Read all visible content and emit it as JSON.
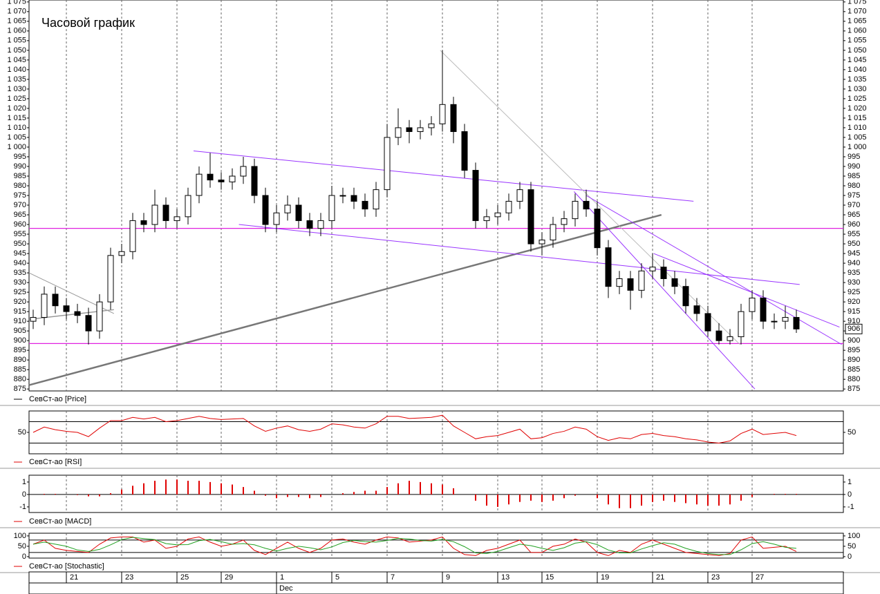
{
  "chart_data": [
    {
      "type": "candlestick",
      "title": "Часовой график",
      "categories": [
        null,
        null,
        null,
        "21",
        null,
        null,
        null,
        null,
        "23",
        null,
        null,
        null,
        null,
        "25",
        null,
        null,
        null,
        "29",
        null,
        null,
        null,
        null,
        "1",
        null,
        null,
        null,
        null,
        "5",
        null,
        null,
        null,
        null,
        "7",
        null,
        null,
        null,
        null,
        "9",
        null,
        null,
        null,
        null,
        "13",
        null,
        null,
        null,
        "15",
        null,
        null,
        null,
        null,
        "19",
        null,
        null,
        null,
        null,
        "21",
        null,
        null,
        null,
        null,
        "23",
        null,
        null,
        null,
        "27",
        null,
        null,
        null,
        null
      ],
      "months": [
        null,
        null,
        null,
        null,
        null,
        null,
        null,
        null,
        null,
        null,
        null,
        null,
        null,
        null,
        null,
        null,
        null,
        null,
        null,
        null,
        null,
        null,
        "Dec",
        null,
        null,
        null,
        null,
        null,
        null,
        null,
        null,
        null,
        null,
        null,
        null,
        null,
        null,
        null,
        null,
        null,
        null,
        null,
        null,
        null,
        null,
        null,
        null,
        null,
        null,
        null,
        null,
        null,
        null,
        null,
        null,
        null,
        null,
        null,
        null,
        null,
        null,
        null,
        null,
        null,
        null,
        null,
        null,
        null,
        null,
        null
      ],
      "series": [
        {
          "name": "СевСт-ао [Price]",
          "color": "#000000",
          "open": [
            910,
            912,
            924,
            918,
            915,
            913,
            905,
            920,
            944,
            946,
            962,
            960,
            970,
            962,
            964,
            975,
            986,
            983,
            982,
            985,
            990,
            975,
            960,
            966,
            970,
            962,
            958,
            962,
            975,
            975,
            972,
            968,
            978,
            1005,
            1010,
            1008,
            1010,
            1012,
            1022,
            1008,
            988,
            962,
            964,
            966,
            972,
            978,
            950,
            952,
            960,
            963,
            972,
            968,
            948,
            928,
            932,
            926,
            936,
            938,
            932,
            928,
            918,
            914,
            905,
            900,
            902,
            915,
            922,
            910,
            910,
            912
          ],
          "high": [
            916,
            928,
            928,
            922,
            919,
            917,
            924,
            948,
            950,
            966,
            966,
            978,
            974,
            968,
            979,
            990,
            997,
            987,
            989,
            995,
            994,
            979,
            970,
            975,
            974,
            966,
            966,
            980,
            979,
            979,
            976,
            982,
            1012,
            1020,
            1014,
            1014,
            1016,
            1050,
            1026,
            1012,
            992,
            968,
            970,
            976,
            982,
            982,
            956,
            964,
            967,
            976,
            978,
            972,
            952,
            936,
            936,
            940,
            945,
            942,
            936,
            932,
            922,
            918,
            909,
            906,
            919,
            926,
            926,
            914,
            918,
            916
          ],
          "low": [
            906,
            908,
            914,
            911,
            909,
            898,
            901,
            916,
            940,
            942,
            956,
            956,
            958,
            958,
            960,
            971,
            979,
            978,
            978,
            981,
            971,
            956,
            956,
            962,
            958,
            954,
            954,
            958,
            971,
            968,
            964,
            964,
            974,
            1001,
            1002,
            1004,
            1006,
            1008,
            1002,
            984,
            958,
            958,
            960,
            962,
            968,
            946,
            944,
            948,
            956,
            959,
            964,
            944,
            922,
            924,
            916,
            922,
            932,
            928,
            924,
            914,
            910,
            902,
            898,
            898,
            898,
            911,
            906,
            906,
            906,
            904
          ],
          "close": [
            912,
            924,
            918,
            915,
            913,
            905,
            920,
            944,
            946,
            962,
            960,
            970,
            962,
            964,
            975,
            986,
            983,
            982,
            985,
            990,
            975,
            960,
            966,
            970,
            962,
            958,
            962,
            975,
            975,
            972,
            968,
            978,
            1005,
            1010,
            1008,
            1010,
            1012,
            1022,
            1008,
            988,
            962,
            964,
            966,
            972,
            978,
            950,
            952,
            960,
            963,
            972,
            968,
            948,
            928,
            932,
            926,
            936,
            938,
            932,
            928,
            918,
            914,
            905,
            900,
            902,
            915,
            922,
            910,
            910,
            912,
            906
          ]
        }
      ],
      "ylim": [
        874,
        1076
      ],
      "yticks": [
        875,
        880,
        885,
        890,
        895,
        900,
        905,
        910,
        915,
        920,
        925,
        930,
        935,
        940,
        945,
        950,
        955,
        960,
        965,
        970,
        975,
        980,
        985,
        990,
        995,
        {
          "value": 1000,
          "label": "1 000"
        },
        {
          "value": 1005,
          "label": "1 005"
        },
        {
          "value": 1010,
          "label": "1 010"
        },
        {
          "value": 1015,
          "label": "1 015"
        },
        {
          "value": 1020,
          "label": "1 020"
        },
        {
          "value": 1025,
          "label": "1 025"
        },
        {
          "value": 1030,
          "label": "1 030"
        },
        {
          "value": 1035,
          "label": "1 035"
        },
        {
          "value": 1040,
          "label": "1 040"
        },
        {
          "value": 1045,
          "label": "1 045"
        },
        {
          "value": 1050,
          "label": "1 050"
        },
        {
          "value": 1055,
          "label": "1 055"
        },
        {
          "value": 1060,
          "label": "1 060"
        },
        {
          "value": 1065,
          "label": "1 065"
        },
        {
          "value": 1070,
          "label": "1 070"
        },
        {
          "value": 1075,
          "label": "1 075"
        }
      ],
      "hlines": [
        {
          "value": 958,
          "color": "#e020e0"
        },
        {
          "value": 898.5,
          "color": "#e020e0"
        }
      ],
      "trendlines": [
        {
          "start": [
            -0.375,
            877
          ],
          "end": [
            56.8,
            965
          ],
          "color": "#777777",
          "width": 2.5
        },
        {
          "start": [
            14.5,
            998
          ],
          "end": [
            59.7,
            972
          ],
          "color": "#9933ff",
          "width": 1
        },
        {
          "start": [
            18.6,
            960
          ],
          "end": [
            69.3,
            929
          ],
          "color": "#9933ff",
          "width": 1
        },
        {
          "start": [
            36.8,
            1050
          ],
          "end": [
            63.9,
            898
          ],
          "color": "#bbbbbb",
          "width": 1
        },
        {
          "start": [
            48.9,
            977
          ],
          "end": [
            65.25,
            875
          ],
          "color": "#9933ff",
          "width": 1
        },
        {
          "start": [
            50,
            975
          ],
          "end": [
            73.1,
            898
          ],
          "color": "#9933ff",
          "width": 1
        },
        {
          "start": [
            56.1,
            945
          ],
          "end": [
            72.9,
            907
          ],
          "color": "#9933ff",
          "width": 1
        },
        {
          "start": [
            -0.375,
            935
          ],
          "end": [
            7.3,
            914
          ],
          "color": "#999999",
          "width": 1
        },
        {
          "start": [
            -0.375,
            911
          ],
          "end": [
            7.3,
            916
          ],
          "color": "#999999",
          "width": 1.5
        }
      ]
    },
    {
      "type": "line",
      "series": [
        {
          "name": "СевСт-ао [RSI]",
          "color": "#e00000",
          "values": [
            50,
            60,
            55,
            52,
            50,
            42,
            58,
            72,
            72,
            78,
            75,
            78,
            70,
            72,
            76,
            80,
            76,
            74,
            75,
            76,
            62,
            52,
            58,
            62,
            55,
            52,
            56,
            66,
            64,
            60,
            58,
            66,
            80,
            80,
            76,
            77,
            78,
            82,
            62,
            50,
            38,
            42,
            44,
            50,
            56,
            38,
            40,
            48,
            52,
            60,
            56,
            42,
            35,
            40,
            38,
            46,
            48,
            44,
            42,
            38,
            36,
            32,
            30,
            34,
            48,
            56,
            46,
            48,
            50,
            44
          ]
        }
      ],
      "ylim": [
        10,
        90
      ],
      "yticks": [
        50
      ],
      "levels": [
        30,
        70
      ]
    },
    {
      "type": "histogram",
      "series": [
        {
          "name": "СевСт-ао [MACD]",
          "color": "#e00000",
          "values": [
            0,
            0.05,
            0.05,
            0,
            -0.05,
            -0.15,
            -0.15,
            0.1,
            0.4,
            0.7,
            0.9,
            1.1,
            1.2,
            1.2,
            1.1,
            1.1,
            1.0,
            0.9,
            0.8,
            0.6,
            0.3,
            -0.1,
            -0.3,
            -0.2,
            -0.2,
            -0.3,
            -0.2,
            0,
            0.1,
            0.2,
            0.3,
            0.3,
            0.6,
            0.9,
            1.1,
            1.0,
            0.9,
            0.8,
            0.5,
            0,
            -0.5,
            -0.9,
            -1.0,
            -0.8,
            -0.6,
            -0.5,
            -0.6,
            -0.5,
            -0.3,
            -0.1,
            0,
            -0.3,
            -0.8,
            -1.1,
            -1.1,
            -0.9,
            -0.6,
            -0.5,
            -0.6,
            -0.7,
            -0.8,
            -0.9,
            -0.9,
            -0.8,
            -0.5,
            -0.2,
            0,
            0.05,
            0.05,
            0.05
          ]
        }
      ],
      "ylim": [
        -1.45,
        1.55
      ],
      "yticks": [
        1,
        0,
        -1
      ],
      "levels": [
        0
      ]
    },
    {
      "type": "line",
      "series": [
        {
          "name": "СевСт-ао [Stochastic]",
          "color": "#e00000",
          "values": [
            60,
            80,
            40,
            30,
            25,
            20,
            60,
            90,
            95,
            95,
            70,
            80,
            40,
            50,
            85,
            95,
            70,
            50,
            60,
            80,
            30,
            10,
            40,
            70,
            40,
            20,
            40,
            80,
            85,
            70,
            60,
            80,
            95,
            90,
            70,
            75,
            80,
            95,
            40,
            10,
            5,
            30,
            40,
            60,
            80,
            20,
            20,
            50,
            60,
            85,
            70,
            20,
            5,
            30,
            20,
            60,
            80,
            60,
            40,
            20,
            15,
            10,
            5,
            15,
            80,
            95,
            40,
            45,
            50,
            25
          ]
        },
        {
          "color": "#20a020",
          "values": [
            60,
            70,
            60,
            50,
            32,
            25,
            35,
            57,
            82,
            93,
            87,
            82,
            63,
            57,
            58,
            77,
            83,
            72,
            60,
            63,
            57,
            40,
            27,
            40,
            50,
            43,
            33,
            47,
            68,
            78,
            72,
            70,
            78,
            88,
            85,
            78,
            75,
            83,
            72,
            48,
            18,
            15,
            25,
            43,
            60,
            53,
            40,
            30,
            43,
            65,
            72,
            58,
            32,
            18,
            18,
            37,
            53,
            67,
            60,
            40,
            25,
            15,
            10,
            10,
            33,
            63,
            72,
            60,
            45,
            40
          ]
        }
      ],
      "ylim": [
        -7,
        113
      ],
      "yticks": [
        100,
        50,
        0
      ],
      "levels": [
        20,
        80
      ]
    }
  ]
}
